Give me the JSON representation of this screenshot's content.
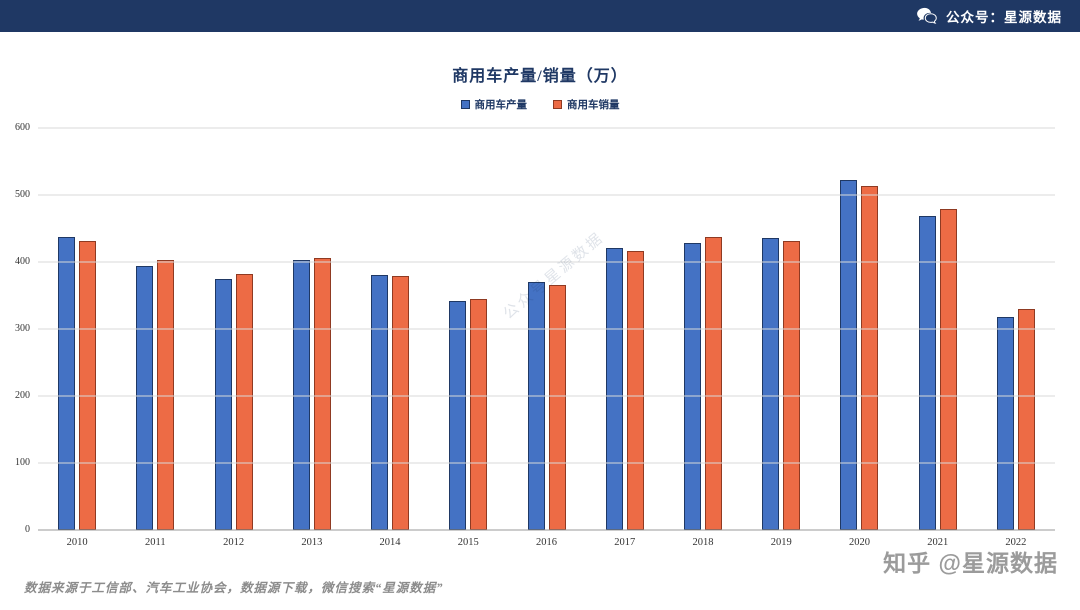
{
  "banner": {
    "label": "公众号：星源数据"
  },
  "title": "商用车产量/销量（万）",
  "legend": [
    {
      "label": "商用车产量",
      "color": "#4472C4",
      "border": "#1F3864"
    },
    {
      "label": "商用车销量",
      "color": "#ED6B45",
      "border": "#8F3A22"
    }
  ],
  "watermark": "公众号星源数据",
  "footer": {
    "note": "数据来源于工信部、汽车工业协会，数据源下载，微信搜索“星源数据”",
    "credit": "知乎 @星源数据"
  },
  "chart_data": {
    "type": "bar",
    "title": "商用车产量/销量（万）",
    "categories": [
      "2010",
      "2011",
      "2012",
      "2013",
      "2014",
      "2015",
      "2016",
      "2017",
      "2018",
      "2019",
      "2020",
      "2021",
      "2022"
    ],
    "series": [
      {
        "name": "商用车产量",
        "color": "#4472C4",
        "border": "#1F3864",
        "values": [
          438,
          394,
          375,
          403,
          380,
          342,
          370,
          421,
          428,
          436,
          523,
          468,
          318
        ]
      },
      {
        "name": "商用车销量",
        "color": "#ED6B45",
        "border": "#8F3A22",
        "values": [
          431,
          403,
          382,
          406,
          379,
          345,
          365,
          416,
          437,
          432,
          513,
          479,
          330
        ]
      }
    ],
    "xlabel": "",
    "ylabel": "",
    "ylim": [
      0,
      600
    ],
    "yticks": [
      0,
      100,
      200,
      300,
      400,
      500,
      600
    ],
    "grid": true,
    "legend_position": "top"
  }
}
